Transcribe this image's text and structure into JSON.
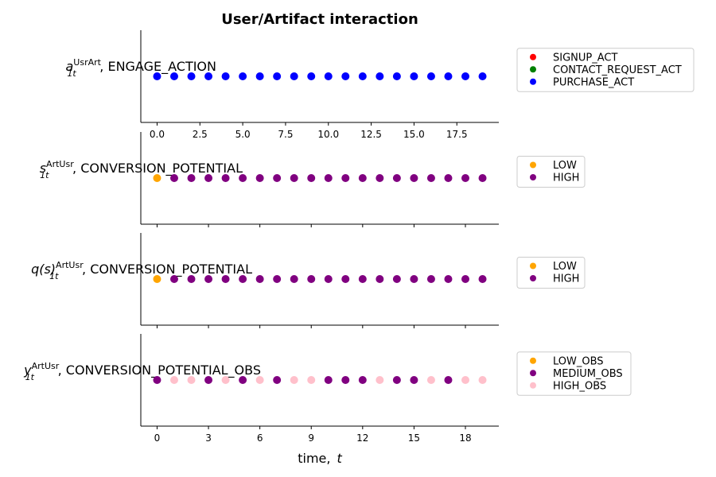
{
  "chart_data": {
    "type": "scatter",
    "title": "User/Artifact interaction",
    "xlabel_text": "time,",
    "xlabel_var": "t",
    "xlim": [
      -0.95,
      19.95
    ],
    "panels": [
      {
        "ylabel_base": "a",
        "ylabel_sub": "1t",
        "ylabel_sup": "UsrArt",
        "ylabel_rest": ", ENGAGE_ACTION",
        "categories": [
          "SIGNUP_ACT",
          "CONTACT_REQUEST_ACT",
          "PURCHASE_ACT"
        ],
        "colors": [
          "#ff0000",
          "#008000",
          "#0000ff"
        ],
        "x": [
          0,
          1,
          2,
          3,
          4,
          5,
          6,
          7,
          8,
          9,
          10,
          11,
          12,
          13,
          14,
          15,
          16,
          17,
          18,
          19
        ],
        "values": [
          2,
          2,
          2,
          2,
          2,
          2,
          2,
          2,
          2,
          2,
          2,
          2,
          2,
          2,
          2,
          2,
          2,
          2,
          2,
          2
        ],
        "xticks": [
          0.0,
          2.5,
          5.0,
          7.5,
          10.0,
          12.5,
          15.0,
          17.5
        ],
        "xtick_labels": [
          "0.0",
          "2.5",
          "5.0",
          "7.5",
          "10.0",
          "12.5",
          "15.0",
          "17.5"
        ]
      },
      {
        "ylabel_base": "s",
        "ylabel_sub": "1t",
        "ylabel_sup": "ArtUsr",
        "ylabel_rest": ", CONVERSION_POTENTIAL",
        "categories": [
          "LOW",
          "HIGH"
        ],
        "colors": [
          "#ffa500",
          "#800080"
        ],
        "x": [
          0,
          1,
          2,
          3,
          4,
          5,
          6,
          7,
          8,
          9,
          10,
          11,
          12,
          13,
          14,
          15,
          16,
          17,
          18,
          19
        ],
        "values": [
          0,
          1,
          1,
          1,
          1,
          1,
          1,
          1,
          1,
          1,
          1,
          1,
          1,
          1,
          1,
          1,
          1,
          1,
          1,
          1
        ],
        "xticks": [
          0,
          3,
          6,
          9,
          12,
          15,
          18
        ],
        "xtick_labels": [
          "",
          "",
          "",
          "",
          "",
          "",
          ""
        ]
      },
      {
        "ylabel_base": "q(s)",
        "ylabel_sub": "1t",
        "ylabel_sup": "ArtUsr",
        "ylabel_rest": ", CONVERSION_POTENTIAL",
        "categories": [
          "LOW",
          "HIGH"
        ],
        "colors": [
          "#ffa500",
          "#800080"
        ],
        "x": [
          0,
          1,
          2,
          3,
          4,
          5,
          6,
          7,
          8,
          9,
          10,
          11,
          12,
          13,
          14,
          15,
          16,
          17,
          18,
          19
        ],
        "values": [
          0,
          1,
          1,
          1,
          1,
          1,
          1,
          1,
          1,
          1,
          1,
          1,
          1,
          1,
          1,
          1,
          1,
          1,
          1,
          1
        ],
        "xticks": [
          0,
          3,
          6,
          9,
          12,
          15,
          18
        ],
        "xtick_labels": [
          "",
          "",
          "",
          "",
          "",
          "",
          ""
        ]
      },
      {
        "ylabel_base": "y",
        "ylabel_sub": "1t",
        "ylabel_sup": "ArtUsr",
        "ylabel_rest": ", CONVERSION_POTENTIAL_OBS",
        "categories": [
          "LOW_OBS",
          "MEDIUM_OBS",
          "HIGH_OBS"
        ],
        "colors": [
          "#ffa500",
          "#800080",
          "#ffc0cb"
        ],
        "x": [
          0,
          1,
          2,
          3,
          4,
          5,
          6,
          7,
          8,
          9,
          10,
          11,
          12,
          13,
          14,
          15,
          16,
          17,
          18,
          19
        ],
        "values": [
          1,
          2,
          2,
          1,
          2,
          1,
          2,
          1,
          2,
          2,
          1,
          1,
          1,
          2,
          1,
          1,
          2,
          1,
          2,
          2
        ],
        "xticks": [
          0,
          3,
          6,
          9,
          12,
          15,
          18
        ],
        "xtick_labels": [
          "0",
          "3",
          "6",
          "9",
          "12",
          "15",
          "18"
        ]
      }
    ]
  }
}
